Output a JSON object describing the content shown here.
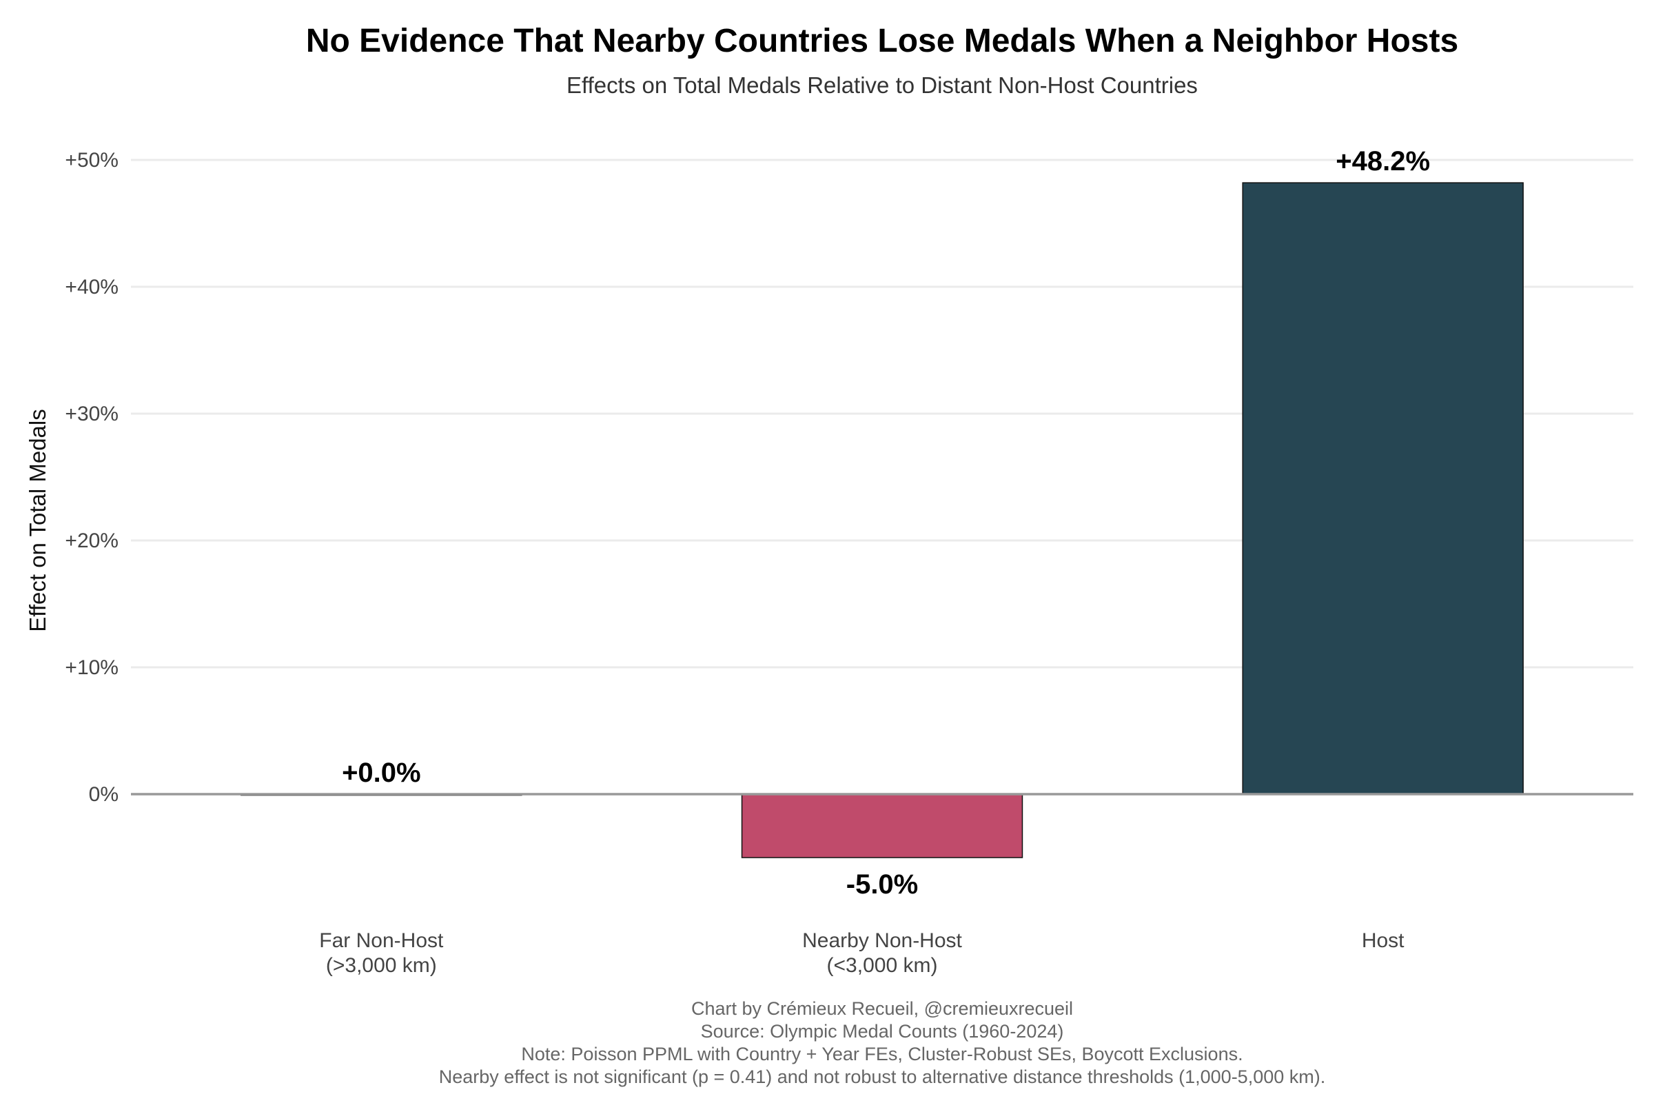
{
  "chart_data": {
    "type": "bar",
    "title": "No Evidence That Nearby Countries Lose Medals When a Neighbor Hosts",
    "subtitle": "Effects on Total Medals Relative to Distant Non-Host Countries",
    "ylabel": "Effect on Total Medals",
    "xlabel": "",
    "categories": [
      [
        "Far Non-Host",
        "(>3,000 km)"
      ],
      [
        "Nearby Non-Host",
        "(<3,000 km)"
      ],
      [
        "Host"
      ]
    ],
    "values": [
      0.0,
      -5.0,
      48.2
    ],
    "value_labels": [
      "+0.0%",
      "-5.0%",
      "+48.2%"
    ],
    "colors": [
      "#1f3d4d",
      "#c04b6b",
      "#264653"
    ],
    "ylim": [
      -8.5,
      53.5
    ],
    "yticks": [
      0,
      10,
      20,
      30,
      40,
      50
    ],
    "ytick_labels": [
      "0%",
      "+10%",
      "+20%",
      "+30%",
      "+40%",
      "+50%"
    ],
    "grid": true,
    "legend": "none",
    "caption": [
      "Chart by Crémieux Recueil, @cremieuxrecueil",
      "Source: Olympic Medal Counts (1960-2024)",
      "Note: Poisson PPML with Country + Year FEs, Cluster-Robust SEs, Boycott Exclusions.",
      "Nearby effect is not significant (p = 0.41) and not robust to alternative distance thresholds (1,000-5,000 km)."
    ]
  }
}
